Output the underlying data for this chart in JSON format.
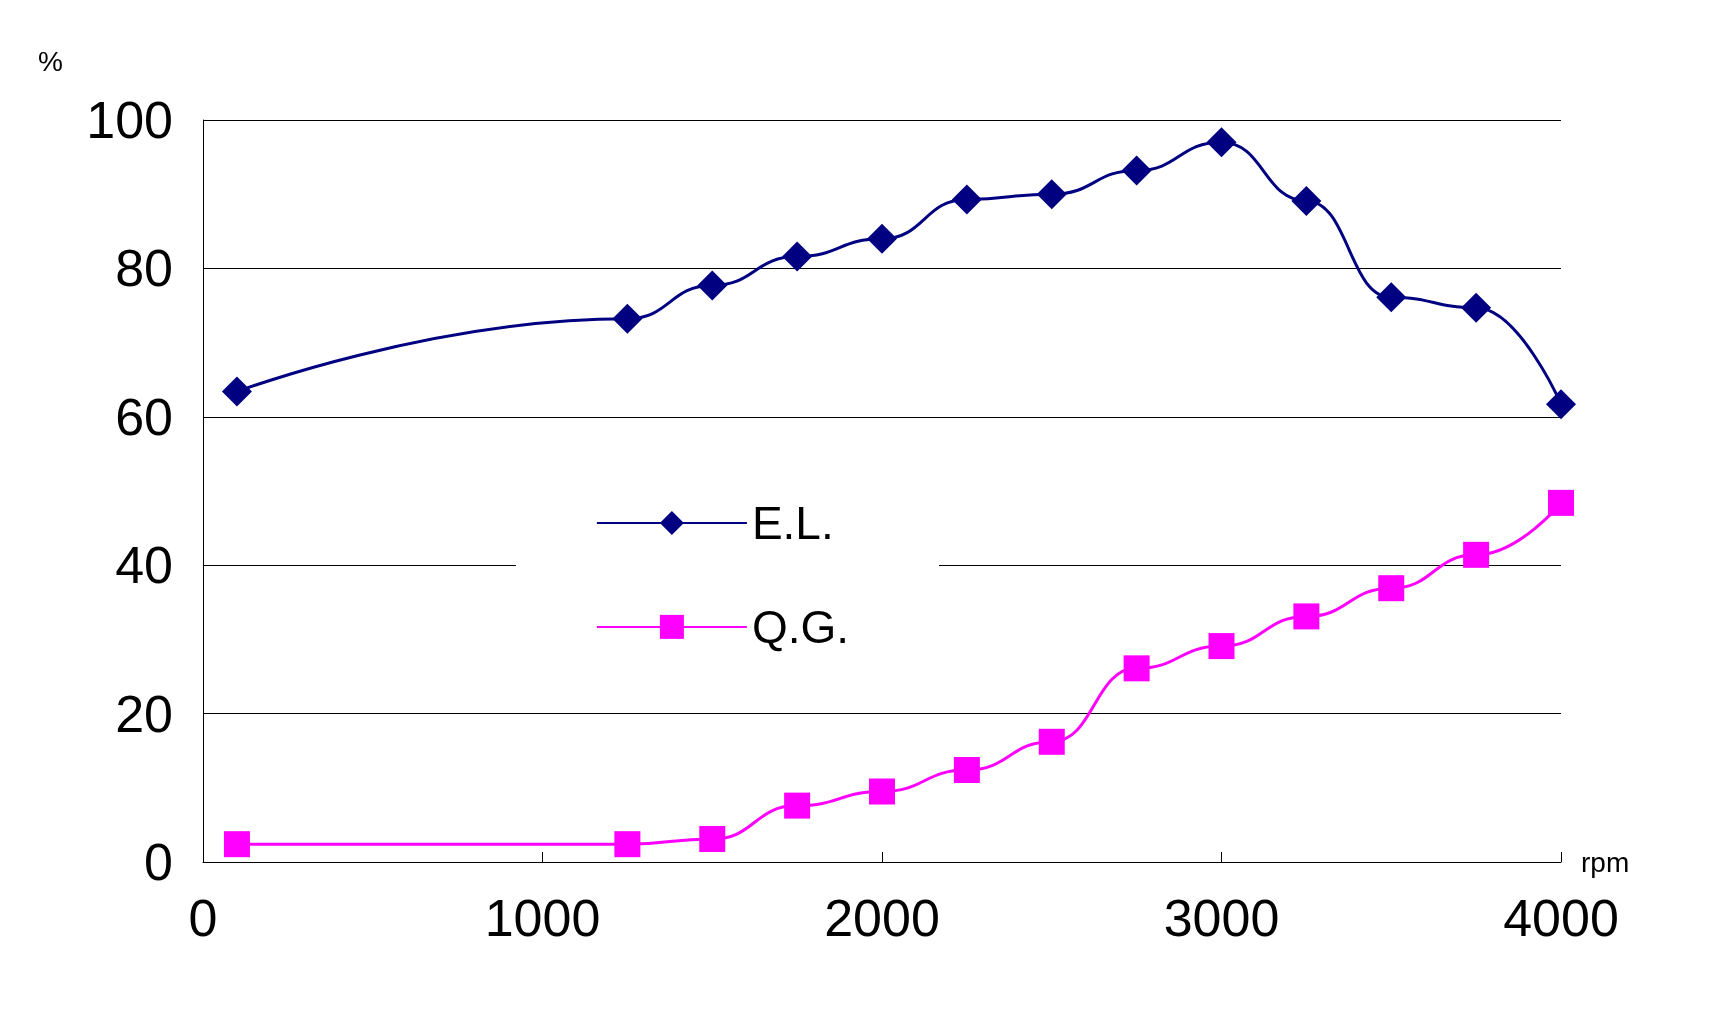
{
  "chart_data": {
    "type": "line",
    "xlabel": "rpm",
    "ylabel": "%",
    "xlim": [
      0,
      4000
    ],
    "xticks": [
      0,
      1000,
      2000,
      3000,
      4000
    ],
    "ylim": [
      0,
      100
    ],
    "yticks": [
      0,
      20,
      40,
      60,
      80,
      100
    ],
    "grid": "y",
    "legend": "left",
    "line_style": "solid",
    "series": [
      {
        "name": "E.L.",
        "color": "#000080",
        "marker": "diamond",
        "x": [
          100,
          1250,
          1500,
          1750,
          2000,
          2250,
          2500,
          2750,
          3000,
          3250,
          3500,
          3750,
          4000
        ],
        "values": [
          63.4,
          73.2,
          77.7,
          81.6,
          84,
          89.3,
          90,
          93.2,
          97,
          89.1,
          76.1,
          74.7,
          61.7
        ]
      },
      {
        "name": "Q.G.",
        "color": "#ff00ff",
        "marker": "square",
        "x": [
          100,
          1250,
          1500,
          1750,
          2000,
          2250,
          2500,
          2750,
          3000,
          3250,
          3500,
          3750,
          4000
        ],
        "values": [
          2.4,
          2.4,
          3.1,
          7.6,
          9.5,
          12.4,
          16.2,
          26.1,
          29.1,
          33.1,
          36.9,
          41.4,
          48.4
        ]
      }
    ]
  }
}
